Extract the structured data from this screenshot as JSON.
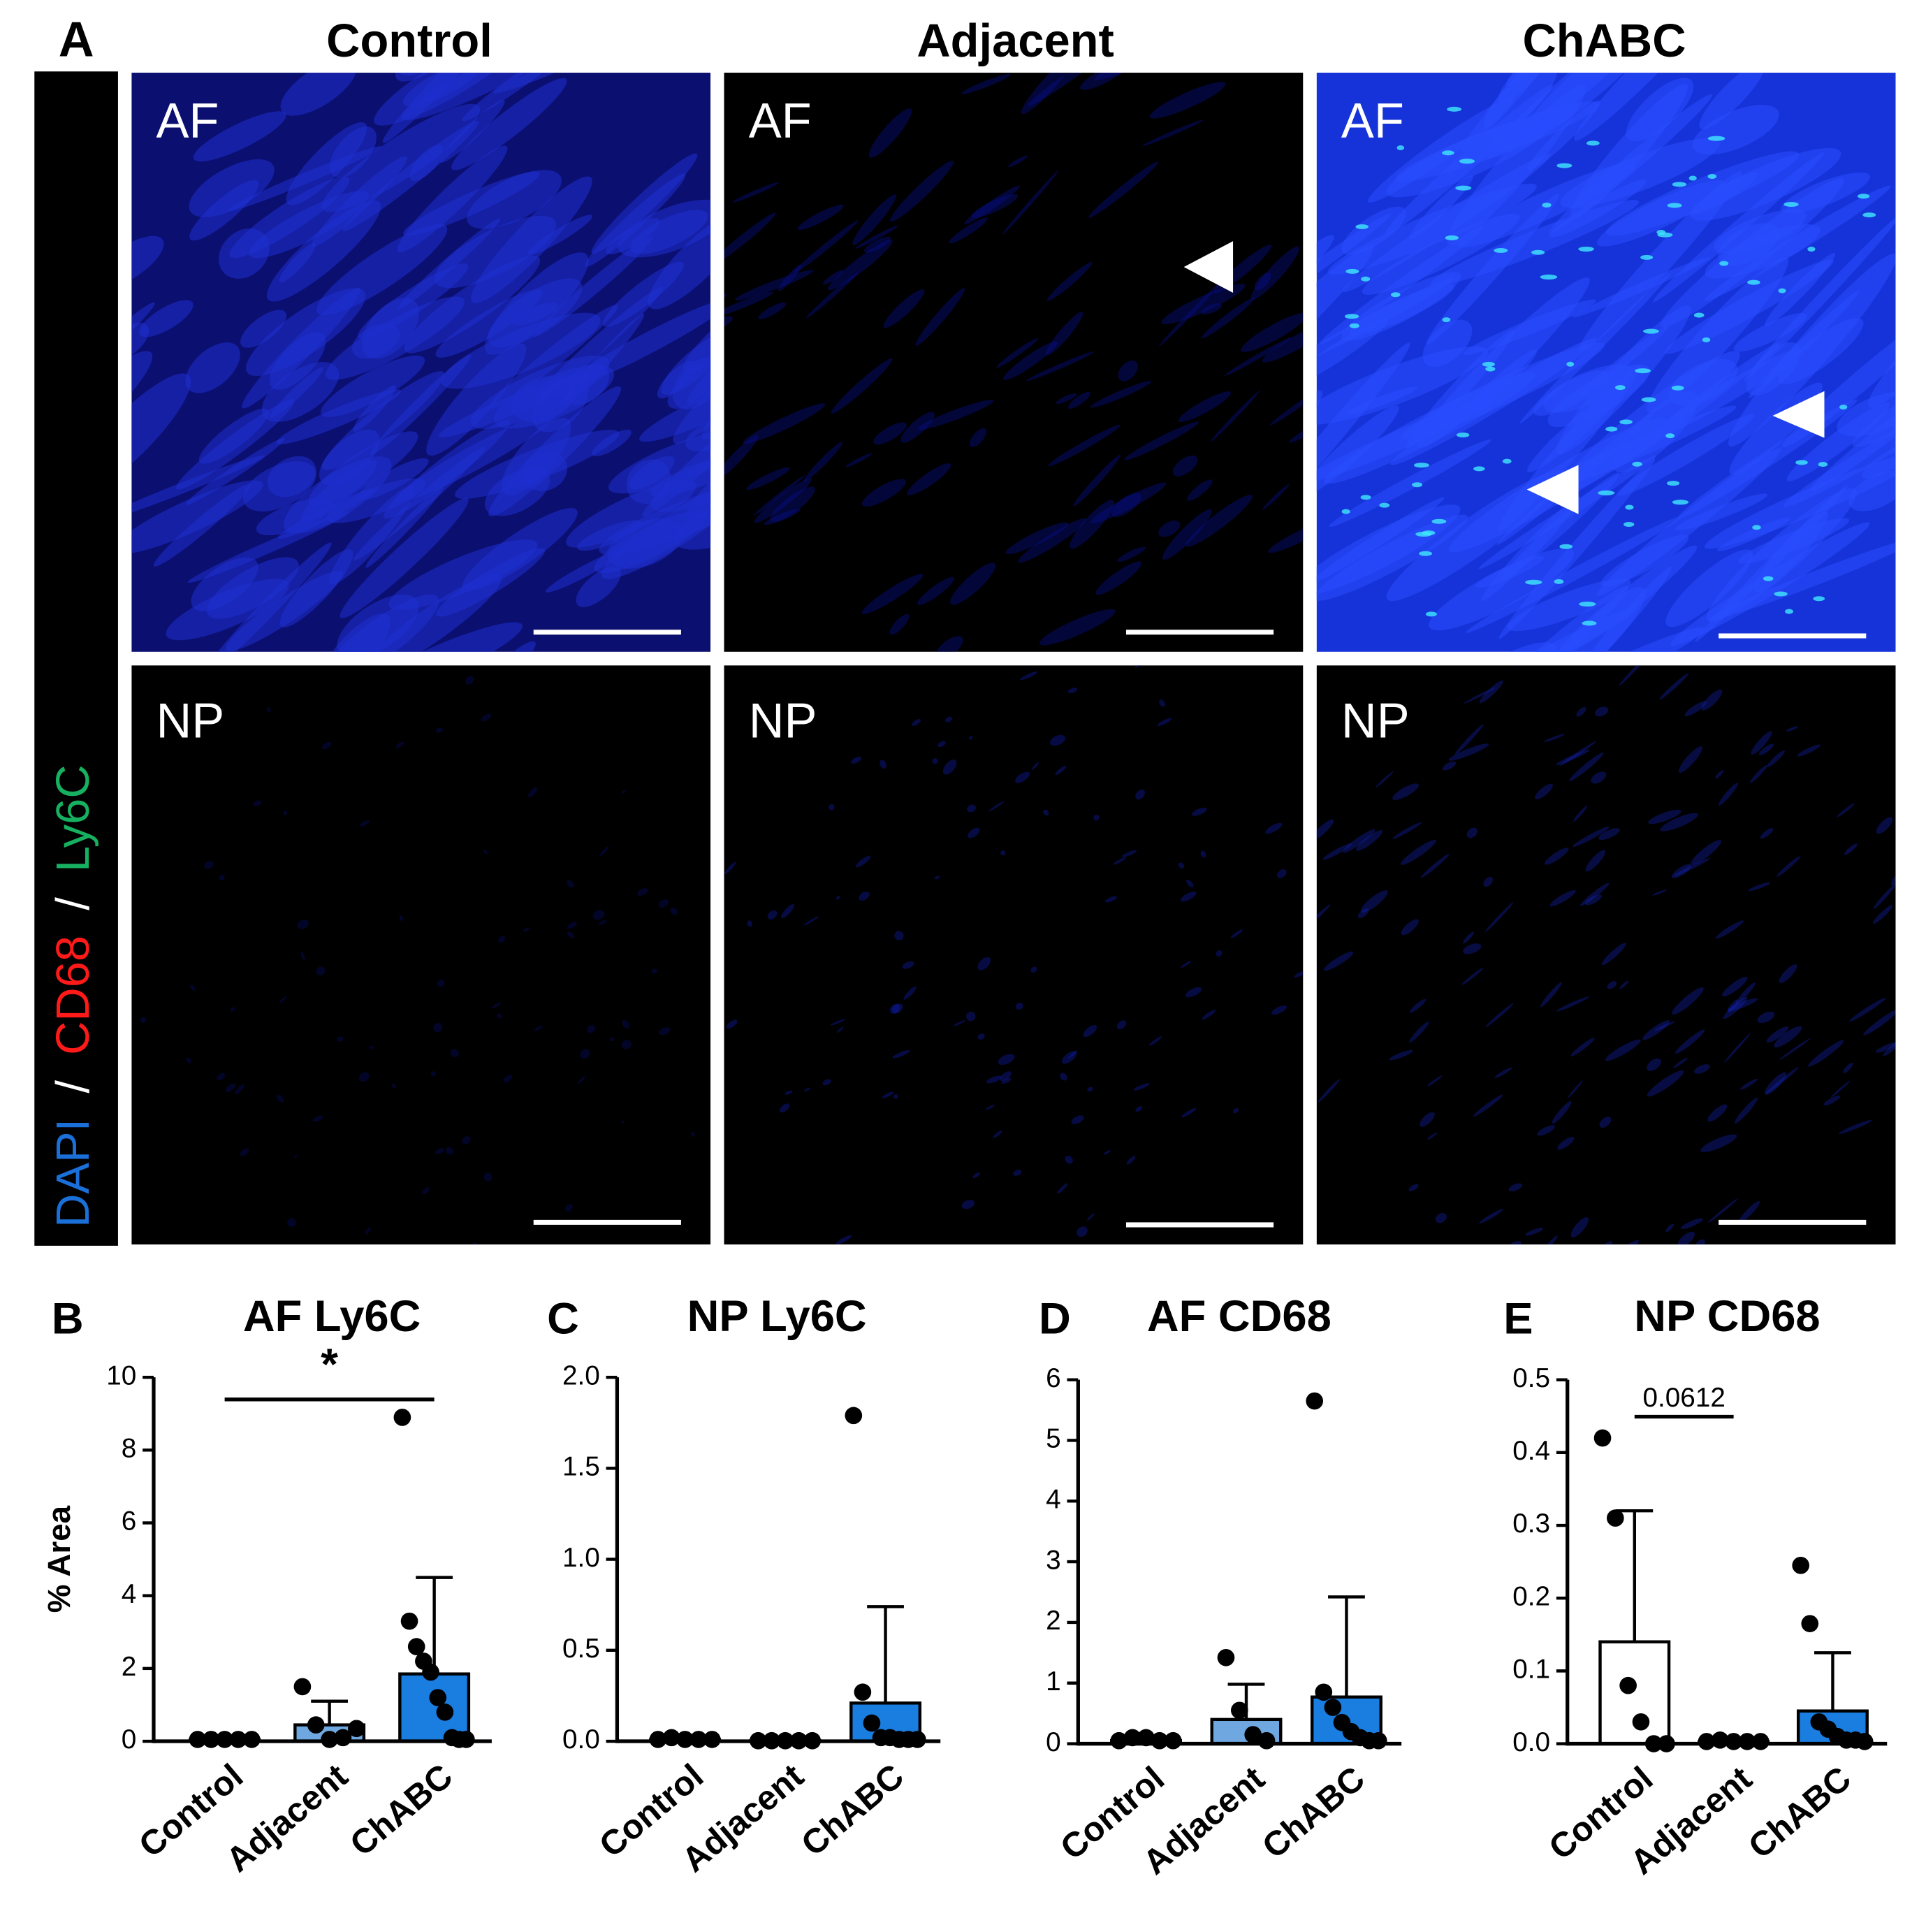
{
  "figure_a": {
    "label": "A",
    "columns": [
      "Control",
      "Adjacent",
      "ChABC"
    ],
    "rows": [
      "AF",
      "NP"
    ],
    "stains": [
      "DAPI",
      "CD68",
      "Ly6C"
    ],
    "separator": "/"
  },
  "chart_data": [
    {
      "type": "bar",
      "label": "B",
      "title": "AF Ly6C",
      "ylabel": "% Area",
      "annotation": "*",
      "categories": [
        "Control",
        "Adjacent",
        "ChABC"
      ],
      "values": [
        0.05,
        0.45,
        1.85
      ],
      "errors": [
        0.02,
        0.65,
        2.65
      ],
      "points": [
        [
          0.05,
          0.05,
          0.05,
          0.05,
          0.05
        ],
        [
          1.5,
          0.45,
          0.05,
          0.1,
          0.35
        ],
        [
          8.9,
          3.3,
          2.6,
          2.2,
          1.9,
          1.2,
          0.8,
          0.1,
          0.05,
          0.05
        ]
      ],
      "colors": [
        "#ffffff",
        "#6fa8e0",
        "#1a7de0"
      ],
      "ylim": [
        0,
        10
      ],
      "yticks": [
        0,
        2,
        4,
        6,
        8,
        10
      ]
    },
    {
      "type": "bar",
      "label": "C",
      "title": "NP Ly6C",
      "categories": [
        "Control",
        "Adjacent",
        "ChABC"
      ],
      "values": [
        0.01,
        0.003,
        0.21
      ],
      "errors": [
        0.005,
        0.001,
        0.53
      ],
      "points": [
        [
          0.01,
          0.02,
          0.01,
          0.01,
          0.01
        ],
        [
          0.003,
          0.003,
          0.003,
          0.003,
          0.003
        ],
        [
          1.79,
          0.27,
          0.1,
          0.02,
          0.02,
          0.01,
          0.01,
          0.01
        ]
      ],
      "colors": [
        "#ffffff",
        "#6fa8e0",
        "#1a7de0"
      ],
      "ylim": [
        0,
        2
      ],
      "yticks": [
        {
          "value": 0,
          "label": "0.0"
        },
        0.5,
        {
          "value": 1,
          "label": "1.0"
        },
        1.5,
        {
          "value": 2,
          "label": "2.0"
        }
      ]
    },
    {
      "type": "bar",
      "label": "D",
      "title": "AF CD68",
      "categories": [
        "Control",
        "Adjacent",
        "ChABC"
      ],
      "values": [
        0.05,
        0.4,
        0.77
      ],
      "errors": [
        0.03,
        0.58,
        1.65
      ],
      "points": [
        [
          0.05,
          0.1,
          0.1,
          0.05,
          0.05
        ],
        [
          1.42,
          0.55,
          0.15,
          0.05
        ],
        [
          5.65,
          0.85,
          0.6,
          0.35,
          0.2,
          0.1,
          0.05,
          0.05
        ]
      ],
      "colors": [
        "#ffffff",
        "#6fa8e0",
        "#1a7de0"
      ],
      "ylim": [
        0,
        6
      ],
      "yticks": [
        0,
        1,
        2,
        3,
        4,
        5,
        6
      ]
    },
    {
      "type": "bar",
      "label": "E",
      "title": "NP CD68",
      "annotation": "0.0612",
      "categories": [
        "Control",
        "Adjacent",
        "ChABC"
      ],
      "values": [
        0.14,
        0.003,
        0.045
      ],
      "errors": [
        0.18,
        0.001,
        0.08
      ],
      "points": [
        [
          0.42,
          0.31,
          0.08,
          0.03,
          0.0,
          0.0
        ],
        [
          0.003,
          0.005,
          0.003,
          0.003,
          0.003
        ],
        [
          0.245,
          0.165,
          0.03,
          0.02,
          0.01,
          0.005,
          0.005,
          0.003
        ]
      ],
      "colors": [
        "#ffffff",
        "#6fa8e0",
        "#1a7de0"
      ],
      "ylim": [
        0,
        0.5
      ],
      "yticks": [
        {
          "value": 0,
          "label": "0.0"
        },
        0.1,
        0.2,
        0.3,
        0.4,
        0.5
      ]
    }
  ]
}
